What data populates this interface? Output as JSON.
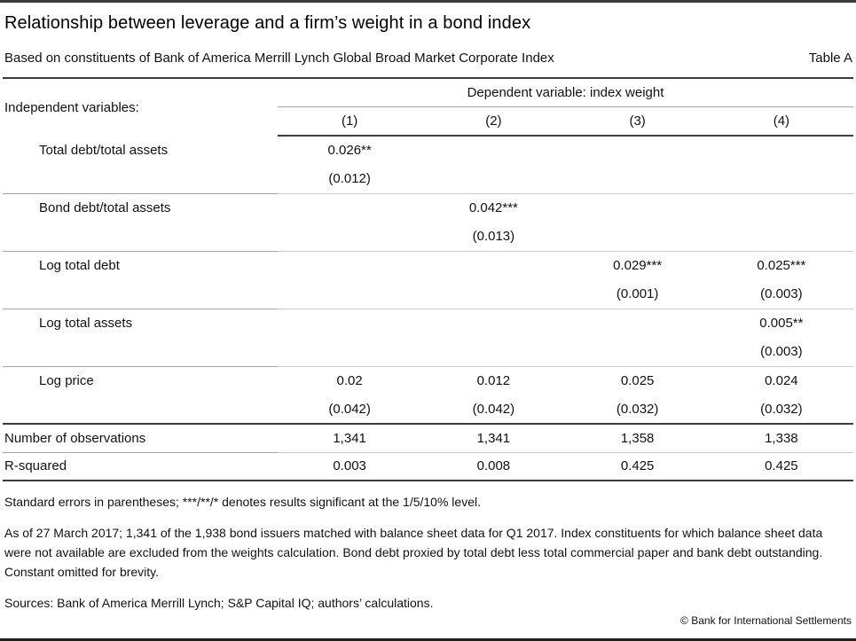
{
  "page": {
    "title": "Relationship between leverage and a firm’s weight in a bond index",
    "subtitle": "Based on constituents of Bank of America Merrill Lynch Global Broad Market Corporate Index",
    "table_ref": "Table A"
  },
  "table": {
    "stub_header": "Independent variables:",
    "dep_var_header": "Dependent variable: index weight",
    "column_headers": [
      "(1)",
      "(2)",
      "(3)",
      "(4)"
    ],
    "rows": [
      {
        "label": "Total debt/total assets",
        "coef": [
          "0.026**",
          "",
          "",
          ""
        ],
        "se": [
          "(0.012)",
          "",
          "",
          ""
        ]
      },
      {
        "label": "Bond debt/total assets",
        "coef": [
          "",
          "0.042***",
          "",
          ""
        ],
        "se": [
          "",
          "(0.013)",
          "",
          ""
        ]
      },
      {
        "label": "Log total debt",
        "coef": [
          "",
          "",
          "0.029***",
          "0.025***"
        ],
        "se": [
          "",
          "",
          "(0.001)",
          "(0.003)"
        ]
      },
      {
        "label": "Log total assets",
        "coef": [
          "",
          "",
          "",
          "0.005**"
        ],
        "se": [
          "",
          "",
          "",
          "(0.003)"
        ]
      },
      {
        "label": "Log price",
        "coef": [
          "0.02",
          "0.012",
          "0.025",
          "0.024"
        ],
        "se": [
          "(0.042)",
          "(0.042)",
          "(0.032)",
          "(0.032)"
        ]
      }
    ],
    "stats": [
      {
        "label": "Number of observations",
        "values": [
          "1,341",
          "1,341",
          "1,358",
          "1,338"
        ]
      },
      {
        "label": "R-squared",
        "values": [
          "0.003",
          "0.008",
          "0.425",
          "0.425"
        ]
      }
    ]
  },
  "notes": {
    "significance": "Standard errors in parentheses; ***/**/* denotes results significant at the 1/5/10% level.",
    "sample": "As of 27 March 2017; 1,341 of the 1,938 bond issuers matched with balance sheet data for Q1 2017. Index constituents for which balance sheet data were not available are excluded from the weights calculation. Bond debt proxied by total debt less total commercial paper and bank debt outstanding. Constant omitted for brevity.",
    "sources": "Sources: Bank of America Merrill Lynch; S&P Capital IQ; authors’ calculations."
  },
  "footer": {
    "copyright": "© Bank for International Settlements"
  },
  "colors": {
    "text": "#1a1a1a",
    "rule_heavy": "#3a3a3a",
    "rule_dark": "#3d3d3d",
    "rule_light": "#cbcbcb",
    "rule_light_label": "#a3a3a3",
    "background": "#ffffff"
  }
}
